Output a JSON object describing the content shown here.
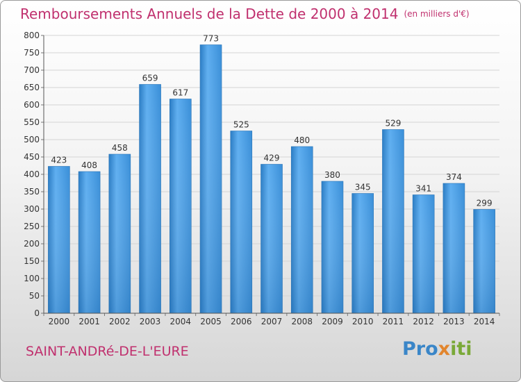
{
  "title": "Remboursements Annuels de la Dette de 2000 à 2014",
  "unit_label": "(en milliers d'€)",
  "commune": "SAINT-ANDRé-DE-L'EURE",
  "logo": {
    "part1": "Pro",
    "part2": "x",
    "part3": "iti"
  },
  "colors": {
    "bar": "#3d95dd",
    "title": "#c0306e"
  },
  "chart_data": {
    "type": "bar",
    "title": "Remboursements Annuels de la Dette de 2000 à 2014",
    "xlabel": "",
    "ylabel": "",
    "ylim": [
      0,
      800
    ],
    "ytick_step": 50,
    "grid": true,
    "categories": [
      "2000",
      "2001",
      "2002",
      "2003",
      "2004",
      "2005",
      "2006",
      "2007",
      "2008",
      "2009",
      "2010",
      "2011",
      "2012",
      "2013",
      "2014"
    ],
    "values": [
      423,
      408,
      458,
      659,
      617,
      773,
      525,
      429,
      480,
      380,
      345,
      529,
      341,
      374,
      299
    ]
  }
}
